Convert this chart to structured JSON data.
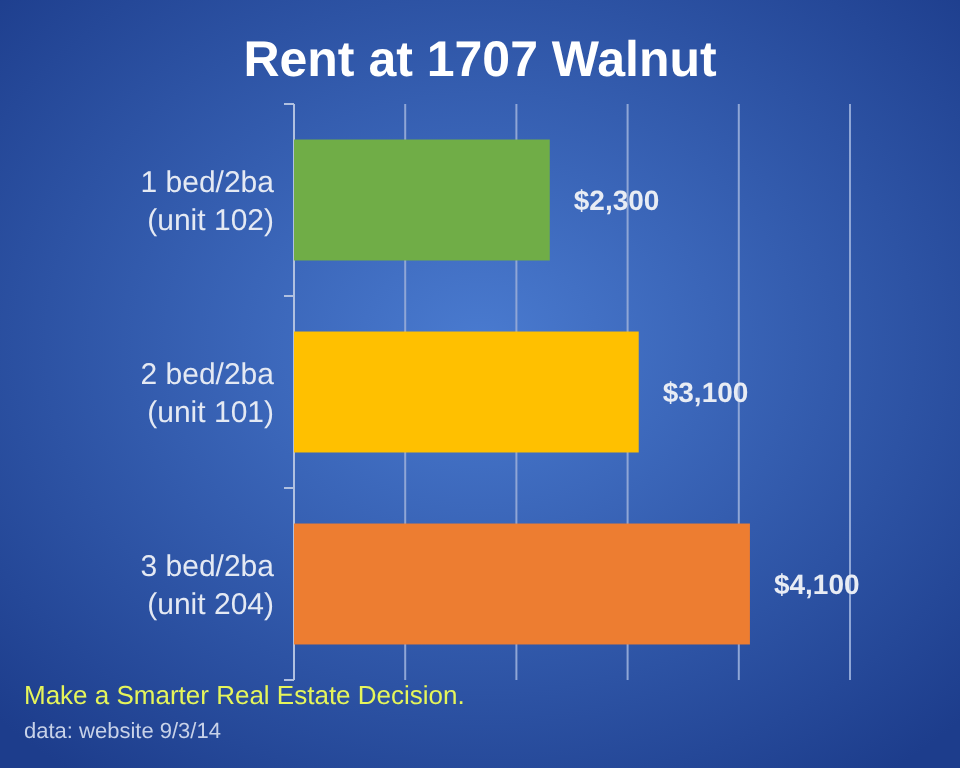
{
  "chart_data": {
    "type": "bar",
    "orientation": "horizontal",
    "title": "Rent at 1707 Walnut",
    "categories": [
      "1 bed/2ba\n(unit 102)",
      "2 bed/2ba\n(unit 101)",
      "3 bed/2ba\n(unit 204)"
    ],
    "values": [
      2300,
      3100,
      4100
    ],
    "colors": [
      "#70ad47",
      "#ffc000",
      "#ed7d31"
    ],
    "value_labels": [
      "$2,300",
      "$3,100",
      "$4,100"
    ],
    "xlim": [
      0,
      5000
    ],
    "xticks": [
      {
        "value": 0,
        "label": null
      },
      {
        "value": 1000,
        "label": null
      },
      {
        "value": 2000,
        "label": null
      },
      {
        "value": 3000,
        "label": null
      },
      {
        "value": 4000,
        "label": null
      },
      {
        "value": 5000,
        "label": null
      }
    ],
    "grid": "x",
    "tick_labels": "y",
    "annotations": [
      "Make a Smarter Real Estate Decision.",
      "data: website 9/3/14"
    ]
  }
}
